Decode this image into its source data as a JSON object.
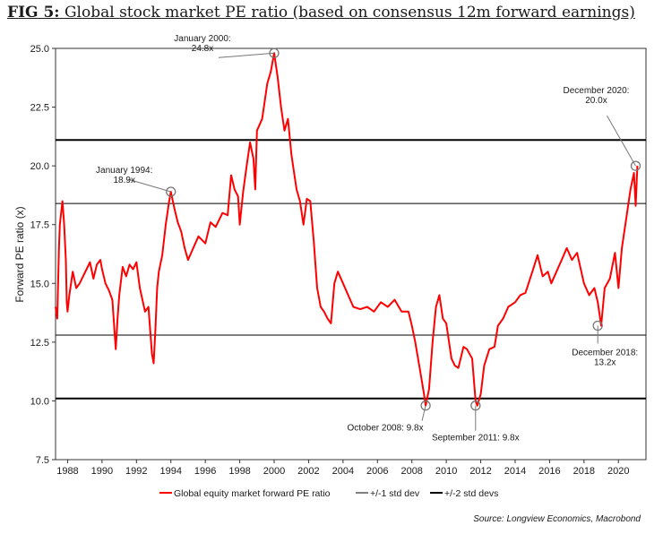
{
  "heading": {
    "fig_label": "FIG 5:",
    "title": "Global stock market PE ratio (based on consensus 12m forward earnings)"
  },
  "source": "Source: Longview Economics, Macrobond",
  "colors": {
    "series": "#ff0000",
    "lines": "#000000",
    "marker": "#777777"
  },
  "chart_data": {
    "type": "line",
    "ylabel": "Forward PE ratio (x)",
    "xlabel": "",
    "ylim": [
      7.5,
      25.0
    ],
    "yticks": [
      "7.5",
      "10.0",
      "12.5",
      "15.0",
      "17.5",
      "20.0",
      "22.5",
      "25.0"
    ],
    "xlim": [
      1987.3,
      2021.6
    ],
    "xticks": [
      "1988",
      "1990",
      "1992",
      "1994",
      "1996",
      "1998",
      "2000",
      "2002",
      "2004",
      "2006",
      "2008",
      "2010",
      "2012",
      "2014",
      "2016",
      "2018",
      "2020"
    ],
    "grid": false,
    "legend_position": "bottom",
    "legend": [
      "Global equity market forward PE ratio",
      "+/-1 std dev",
      "+/-2 std devs"
    ],
    "reference_lines": [
      {
        "name": "+/-2 std devs",
        "value": 21.1,
        "width": 2
      },
      {
        "name": "+/-1 std dev",
        "value": 18.4,
        "width": 1
      },
      {
        "name": "+/-1 std dev",
        "value": 12.8,
        "width": 1
      },
      {
        "name": "+/-2 std devs",
        "value": 10.1,
        "width": 2
      }
    ],
    "series": [
      {
        "name": "Global equity market forward PE ratio",
        "x": [
          1987.3,
          1987.4,
          1987.5,
          1987.55,
          1987.7,
          1987.8,
          1987.9,
          1987.95,
          1988.0,
          1988.1,
          1988.2,
          1988.3,
          1988.5,
          1988.7,
          1988.9,
          1989.1,
          1989.3,
          1989.5,
          1989.7,
          1989.9,
          1990.0,
          1990.2,
          1990.4,
          1990.6,
          1990.8,
          1990.9,
          1991.0,
          1991.2,
          1991.4,
          1991.6,
          1991.8,
          1992.0,
          1992.2,
          1992.5,
          1992.7,
          1992.9,
          1993.0,
          1993.1,
          1993.2,
          1993.3,
          1993.5,
          1993.7,
          1993.9,
          1994.0,
          1994.2,
          1994.4,
          1994.6,
          1994.8,
          1995.0,
          1995.3,
          1995.6,
          1996.0,
          1996.3,
          1996.6,
          1997.0,
          1997.3,
          1997.5,
          1997.7,
          1997.9,
          1998.0,
          1998.2,
          1998.4,
          1998.6,
          1998.8,
          1998.9,
          1999.0,
          1999.3,
          1999.6,
          1999.8,
          2000.0,
          2000.2,
          2000.4,
          2000.6,
          2000.8,
          2001.0,
          2001.1,
          2001.3,
          2001.5,
          2001.7,
          2001.9,
          2002.1,
          2002.3,
          2002.5,
          2002.7,
          2002.9,
          2003.1,
          2003.3,
          2003.5,
          2003.7,
          2004.0,
          2004.3,
          2004.6,
          2005.0,
          2005.4,
          2005.8,
          2006.2,
          2006.6,
          2007.0,
          2007.4,
          2007.8,
          2008.0,
          2008.2,
          2008.5,
          2008.7,
          2008.8,
          2009.0,
          2009.2,
          2009.4,
          2009.6,
          2009.8,
          2010.0,
          2010.3,
          2010.5,
          2010.7,
          2011.0,
          2011.2,
          2011.5,
          2011.7,
          2011.8,
          2012.0,
          2012.2,
          2012.5,
          2012.8,
          2013.0,
          2013.3,
          2013.6,
          2014.0,
          2014.3,
          2014.6,
          2015.0,
          2015.3,
          2015.6,
          2015.9,
          2016.1,
          2016.4,
          2016.7,
          2017.0,
          2017.3,
          2017.6,
          2018.0,
          2018.3,
          2018.6,
          2018.8,
          2019.0,
          2019.2,
          2019.5,
          2019.8,
          2020.0,
          2020.2,
          2020.5,
          2020.7,
          2020.9,
          2021.0,
          2021.1
        ],
        "values": [
          14.0,
          13.5,
          16.5,
          17.5,
          18.5,
          17.5,
          16.0,
          14.2,
          13.8,
          14.5,
          15.0,
          15.5,
          14.8,
          15.0,
          15.3,
          15.6,
          15.9,
          15.2,
          15.8,
          16.0,
          15.6,
          15.0,
          14.7,
          14.3,
          12.2,
          13.5,
          14.5,
          15.7,
          15.3,
          15.8,
          15.6,
          15.9,
          14.8,
          13.8,
          14.0,
          12.0,
          11.6,
          13.0,
          14.8,
          15.5,
          16.2,
          17.5,
          18.5,
          18.9,
          18.2,
          17.6,
          17.2,
          16.5,
          16.0,
          16.5,
          17.0,
          16.7,
          17.6,
          17.4,
          18.0,
          17.9,
          19.6,
          19.0,
          18.7,
          17.5,
          18.9,
          20.0,
          21.0,
          20.3,
          19.0,
          21.5,
          22.0,
          23.5,
          24.0,
          24.8,
          23.8,
          22.5,
          21.5,
          22.0,
          20.5,
          20.0,
          19.0,
          18.5,
          17.5,
          18.6,
          18.5,
          16.8,
          14.8,
          14.0,
          13.8,
          13.5,
          13.3,
          15.0,
          15.5,
          15.0,
          14.5,
          14.0,
          13.9,
          14.0,
          13.8,
          14.2,
          14.0,
          14.3,
          13.8,
          13.8,
          13.2,
          12.5,
          11.2,
          10.3,
          9.8,
          10.5,
          12.5,
          14.0,
          14.5,
          13.5,
          13.3,
          11.8,
          11.5,
          11.4,
          12.3,
          12.2,
          11.8,
          10.0,
          9.8,
          10.3,
          11.5,
          12.2,
          12.3,
          13.2,
          13.5,
          14.0,
          14.2,
          14.5,
          14.6,
          15.5,
          16.2,
          15.3,
          15.5,
          15.0,
          15.5,
          16.0,
          16.5,
          16.0,
          16.3,
          15.0,
          14.5,
          14.8,
          14.2,
          13.2,
          14.8,
          15.2,
          16.3,
          14.8,
          16.5,
          18.0,
          19.0,
          19.7,
          18.3,
          20.0
        ]
      }
    ],
    "annotations": [
      {
        "x": 1994.0,
        "y": 18.9,
        "lines": [
          "January 1994:",
          "18.9x"
        ]
      },
      {
        "x": 2000.0,
        "y": 24.8,
        "lines": [
          "January 2000:",
          "24.8x"
        ]
      },
      {
        "x": 2008.8,
        "y": 9.8,
        "lines": [
          "October 2008: 9.8x"
        ]
      },
      {
        "x": 2011.7,
        "y": 9.8,
        "lines": [
          "September 2011: 9.8x"
        ]
      },
      {
        "x": 2018.8,
        "y": 13.2,
        "lines": [
          "December 2018:",
          "13.2x"
        ]
      },
      {
        "x": 2021.0,
        "y": 20.0,
        "lines": [
          "December 2020:",
          "20.0x"
        ]
      }
    ]
  }
}
